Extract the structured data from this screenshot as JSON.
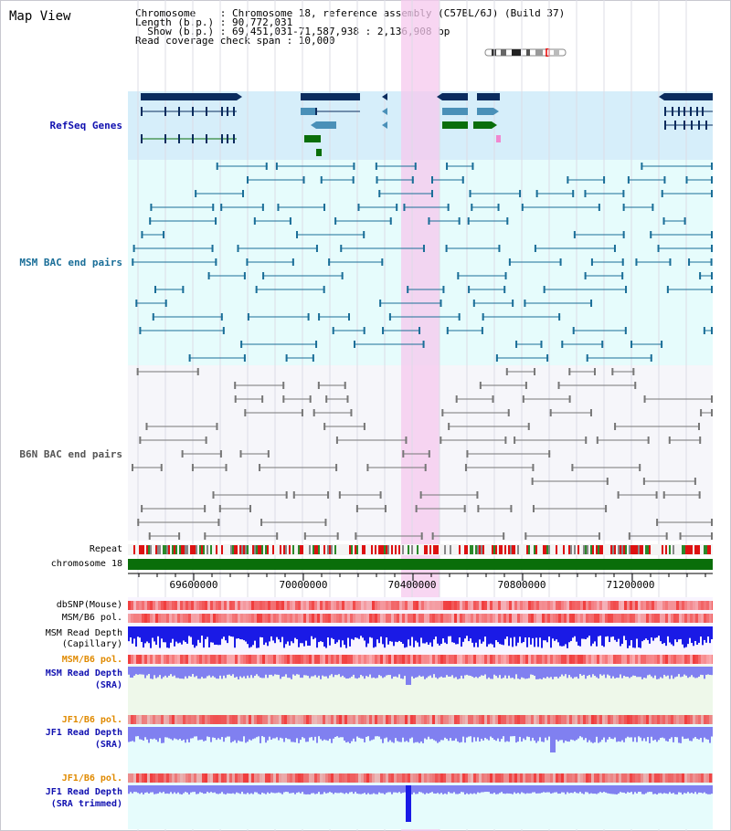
{
  "view_title": "Map View",
  "info": {
    "line1": "Chromosome    : Chromosome 18, reference assembly (C57BL/6J) (Build 37)",
    "line2": "Length (b.p.) : 90,772,031",
    "line3": "  Show (b.p.) : 69,451,031-71,587,938 : 2,136,908 bp",
    "line4": "Read coverage check span : 10,000"
  },
  "axis_ticks": [
    "69600000",
    "70000000",
    "70400000",
    "70800000",
    "71200000"
  ],
  "tracks": {
    "refseq": {
      "label": "RefSeq Genes",
      "color": "#1010b0"
    },
    "msm_bac": {
      "label": "MSM BAC end pairs",
      "color": "#1a6e98"
    },
    "b6n_bac": {
      "label": "B6N BAC end pairs",
      "color": "#555555"
    },
    "repeat": {
      "label": "Repeat"
    },
    "chromosome": {
      "label": "chromosome 18"
    },
    "dbsnp": {
      "label": "dbSNP(Mouse)"
    },
    "msm_b6_pol": {
      "label": "MSM/B6 pol."
    },
    "msm_depth_cap": {
      "label": "MSM Read Depth\n(Capillary)",
      "color": "#1010b0"
    },
    "msm_b6_pol2": {
      "label": "MSM/B6 pol.",
      "color": "#e08a00"
    },
    "msm_depth_sra": {
      "label": "MSM Read Depth\n(SRA)",
      "color": "#1010b0"
    },
    "jf1_b6_pol": {
      "label": "JF1/B6 pol.",
      "color": "#e08a00"
    },
    "jf1_depth_sra": {
      "label": "JF1 Read Depth\n(SRA)",
      "color": "#1010b0"
    },
    "jf1_b6_pol2": {
      "label": "JF1/B6 pol.",
      "color": "#e08a00"
    },
    "jf1_depth_trim": {
      "label": "JF1 Read Depth\n(SRA trimmed)",
      "color": "#1010b0"
    }
  },
  "colors": {
    "highlight": "#f5c8ee",
    "refseq_bg": "#d6eefa",
    "msm_bg": "#e6fcfc",
    "b6n_bg": "#f6f6fa",
    "gene_dark": "#0b2c5e",
    "gene_mid": "#4a90b8",
    "gene_green": "#0a6e0a",
    "depth_blue": "#1a1ae6",
    "depth_light": "#8080f0",
    "pol_red": "#f03a3a"
  }
}
